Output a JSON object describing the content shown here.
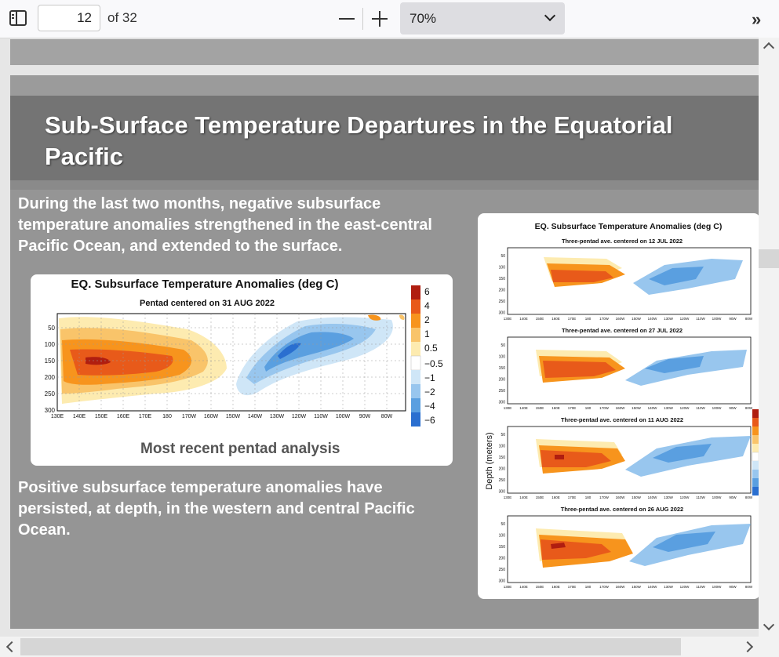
{
  "toolbar": {
    "page_number": "12",
    "page_count": "of 32",
    "zoom": "70%",
    "colors": {
      "background": "#f9f9fb",
      "zoom_select": "#dddde1"
    }
  },
  "slide": {
    "title": "Sub-Surface Temperature Departures in the Equatorial Pacific",
    "paragraph1": "During the last two months, negative subsurface temperature anomalies strengthened in the east-central Pacific Ocean, and extended to the surface.",
    "paragraph2": "Positive subsurface temperature anomalies have persisted, at depth, in the western and central Pacific Ocean.",
    "caption": "Most recent pentad analysis",
    "colors": {
      "background": "#959595",
      "title_band": "#747474",
      "text": "#ffffff"
    }
  },
  "chart_data": [
    {
      "type": "heatmap",
      "title": "EQ. Subsurface Temperature Anomalies (deg C)",
      "subtitle": "Pentad centered on 31 AUG 2022",
      "x_ticks": [
        "130E",
        "140E",
        "150E",
        "160E",
        "170E",
        "180",
        "170W",
        "160W",
        "150W",
        "140W",
        "130W",
        "120W",
        "110W",
        "100W",
        "90W",
        "80W"
      ],
      "y_ticks": [
        "50",
        "100",
        "150",
        "200",
        "250",
        "300"
      ],
      "legend_levels": [
        "6",
        "4",
        "2",
        "1",
        "0.5",
        "−0.5",
        "−1",
        "−2",
        "−4",
        "−6"
      ],
      "legend_colors": [
        "#b01e10",
        "#e85a1a",
        "#f7941d",
        "#f9c46a",
        "#fdebb0",
        "#ffffff",
        "#cfe6f7",
        "#98c6ee",
        "#5a9fe0",
        "#2a6fd0"
      ]
    },
    {
      "type": "heatmap",
      "title": "EQ. Subsurface Temperature Anomalies (deg C)",
      "ylabel": "Depth (meters)",
      "panels": [
        "Three-pentad ave. centered on 12 JUL 2022",
        "Three-pentad ave. centered on 27 JUL 2022",
        "Three-pentad ave. centered on 11 AUG 2022",
        "Three-pentad ave. centered on 26 AUG 2022"
      ],
      "x_ticks": [
        "130E",
        "140E",
        "150E",
        "160E",
        "170E",
        "180",
        "170W",
        "160W",
        "150W",
        "140W",
        "130W",
        "120W",
        "110W",
        "100W",
        "90W",
        "80W"
      ],
      "y_ticks": [
        "50",
        "100",
        "150",
        "200",
        "250",
        "300"
      ]
    }
  ]
}
